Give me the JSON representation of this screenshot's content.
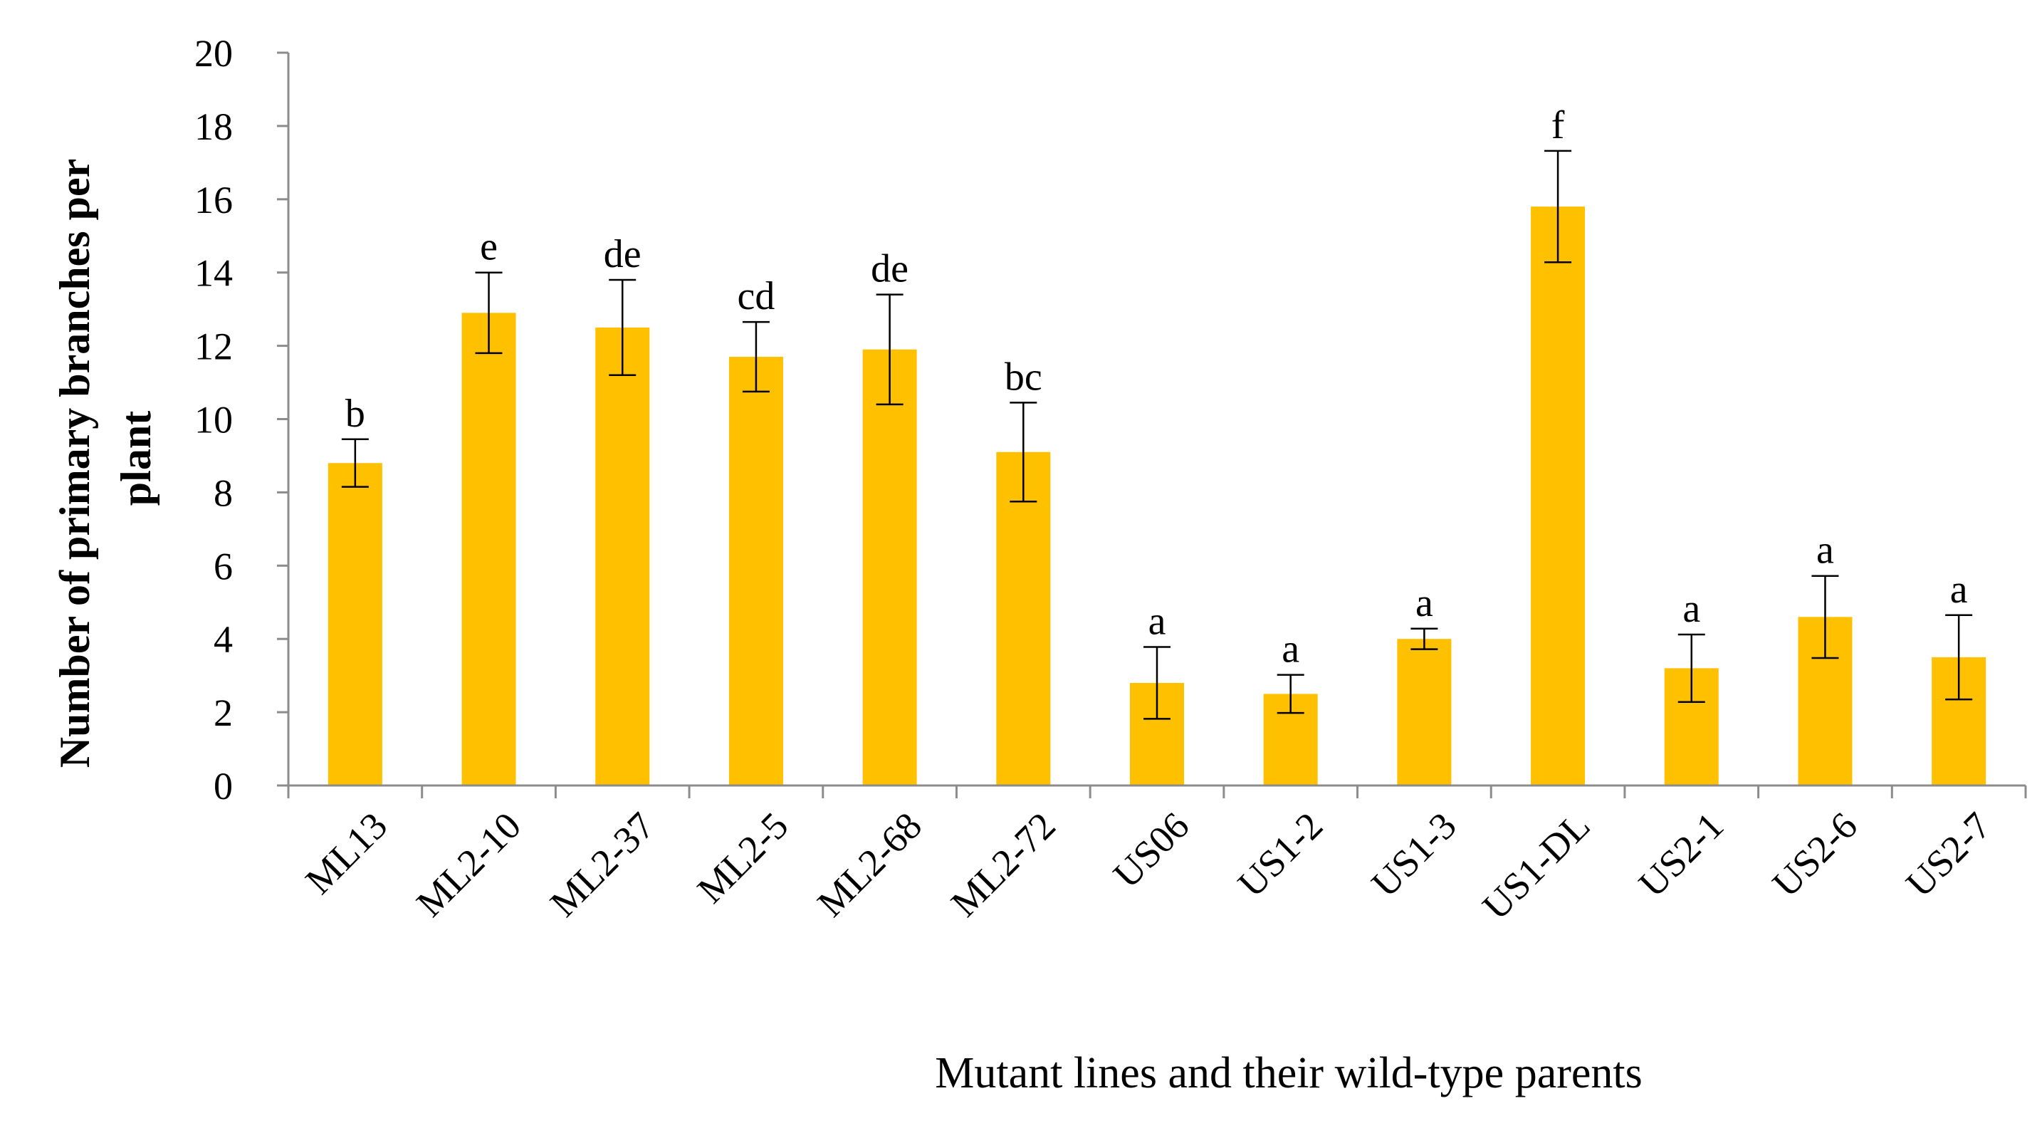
{
  "chart_data": {
    "type": "bar",
    "xlabel": "Mutant lines and their wild-type parents",
    "ylabel_line1": "Number of primary branches per",
    "ylabel_line2": "plant",
    "ylim": [
      0,
      20
    ],
    "yticks": [
      "0",
      "2",
      "4",
      "6",
      "8",
      "10",
      "12",
      "14",
      "16",
      "18",
      "20"
    ],
    "bar_color": "#FFC000",
    "categories": [
      "ML13",
      "ML2-10",
      "ML2-37",
      "ML2-5",
      "ML2-68",
      "ML2-72",
      "US06",
      "US1-2",
      "US1-3",
      "US1-DL",
      "US2-1",
      "US2-6",
      "US2-7"
    ],
    "values": [
      8.8,
      12.9,
      12.5,
      11.7,
      11.9,
      9.1,
      2.8,
      2.5,
      4.0,
      15.8,
      3.2,
      4.6,
      3.5
    ],
    "errors": [
      0.65,
      1.1,
      1.3,
      0.95,
      1.5,
      1.35,
      0.98,
      0.52,
      0.28,
      1.52,
      0.92,
      1.12,
      1.15
    ],
    "significance": [
      "b",
      "e",
      "de",
      "cd",
      "de",
      "bc",
      "a",
      "a",
      "a",
      "f",
      "a",
      "a",
      "a"
    ]
  }
}
